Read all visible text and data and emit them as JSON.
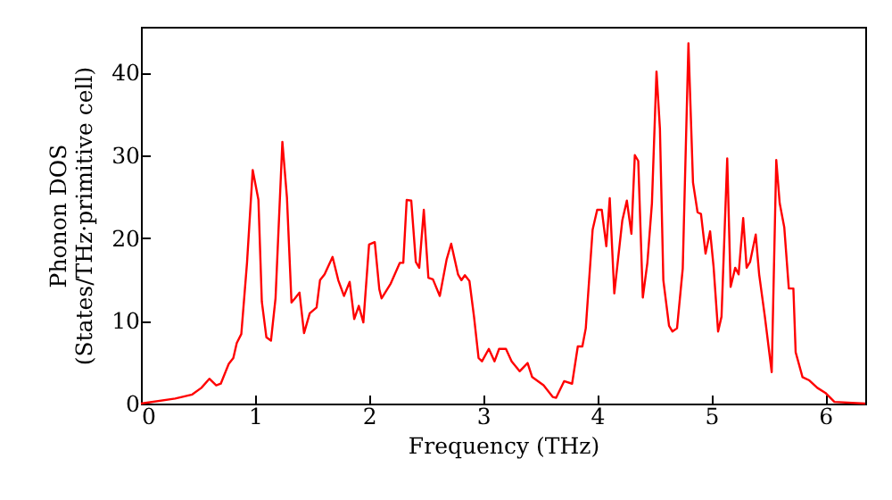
{
  "chart_data": {
    "type": "line",
    "xlabel": "Frequency (THz)",
    "ylabel": "Phonon DOS\n(States/THz·primitive cell)",
    "xlim": [
      0,
      6.35
    ],
    "ylim": [
      0,
      45.5
    ],
    "xticks": [
      0,
      1,
      2,
      3,
      4,
      5,
      6
    ],
    "yticks": [
      0,
      10,
      20,
      30,
      40
    ],
    "grid": false,
    "marker": "none",
    "line_style": "solid",
    "series": [
      {
        "color": "#ff0000",
        "x": [
          0,
          0.3,
          0.45,
          0.53,
          0.6,
          0.66,
          0.7,
          0.77,
          0.81,
          0.84,
          0.88,
          0.93,
          0.98,
          1.03,
          1.06,
          1.1,
          1.14,
          1.18,
          1.24,
          1.28,
          1.32,
          1.35,
          1.39,
          1.43,
          1.48,
          1.54,
          1.57,
          1.61,
          1.68,
          1.73,
          1.78,
          1.83,
          1.87,
          1.91,
          1.95,
          2.0,
          2.05,
          2.09,
          2.11,
          2.19,
          2.27,
          2.3,
          2.33,
          2.37,
          2.41,
          2.44,
          2.48,
          2.52,
          2.56,
          2.62,
          2.68,
          2.72,
          2.78,
          2.81,
          2.84,
          2.88,
          2.92,
          2.96,
          2.99,
          3.05,
          3.1,
          3.14,
          3.2,
          3.25,
          3.32,
          3.39,
          3.43,
          3.53,
          3.61,
          3.64,
          3.71,
          3.78,
          3.83,
          3.87,
          3.9,
          3.96,
          4.0,
          4.04,
          4.08,
          4.11,
          4.15,
          4.22,
          4.26,
          4.3,
          4.33,
          4.36,
          4.4,
          4.44,
          4.48,
          4.52,
          4.55,
          4.58,
          4.63,
          4.66,
          4.7,
          4.75,
          4.8,
          4.84,
          4.88,
          4.91,
          4.95,
          4.99,
          5.02,
          5.06,
          5.09,
          5.14,
          5.17,
          5.21,
          5.24,
          5.28,
          5.31,
          5.34,
          5.39,
          5.42,
          5.47,
          5.53,
          5.57,
          5.6,
          5.64,
          5.68,
          5.72,
          5.74,
          5.8,
          5.86,
          5.93,
          6.0,
          6.08,
          6.35
        ],
        "values": [
          0,
          0.6,
          1.1,
          1.9,
          3.0,
          2.2,
          2.4,
          4.8,
          5.5,
          7.3,
          8.4,
          17,
          28.2,
          24.6,
          12.3,
          8.0,
          7.6,
          12.7,
          31.6,
          24.9,
          12.2,
          12.7,
          13.4,
          8.5,
          10.9,
          11.6,
          14.9,
          15.6,
          17.7,
          14.9,
          13.0,
          14.7,
          10.2,
          11.8,
          9.8,
          19.2,
          19.5,
          13.8,
          12.7,
          14.5,
          17.0,
          17.0,
          24.6,
          24.5,
          17.1,
          16.4,
          23.4,
          15.2,
          15.0,
          13.0,
          17.4,
          19.3,
          15.6,
          14.9,
          15.5,
          14.8,
          10.5,
          5.5,
          5.1,
          6.6,
          5.1,
          6.6,
          6.6,
          5.1,
          3.9,
          4.9,
          3.2,
          2.2,
          0.8,
          0.7,
          2.7,
          2.4,
          6.9,
          6.9,
          9.1,
          21.0,
          23.4,
          23.4,
          19.0,
          24.8,
          13.3,
          22.1,
          24.5,
          20.5,
          30.0,
          29.3,
          12.8,
          17.0,
          24.2,
          40.1,
          33.2,
          14.9,
          9.4,
          8.7,
          9.1,
          16.3,
          43.5,
          26.7,
          23.1,
          22.9,
          18.1,
          20.8,
          16.6,
          8.7,
          10.5,
          29.6,
          14.1,
          16.4,
          15.6,
          22.4,
          16.4,
          17.1,
          20.4,
          15.6,
          10.5,
          3.8,
          29.4,
          24.2,
          21.3,
          13.9,
          13.9,
          6.2,
          3.2,
          2.8,
          1.9,
          1.3,
          0.2,
          0
        ]
      }
    ]
  }
}
